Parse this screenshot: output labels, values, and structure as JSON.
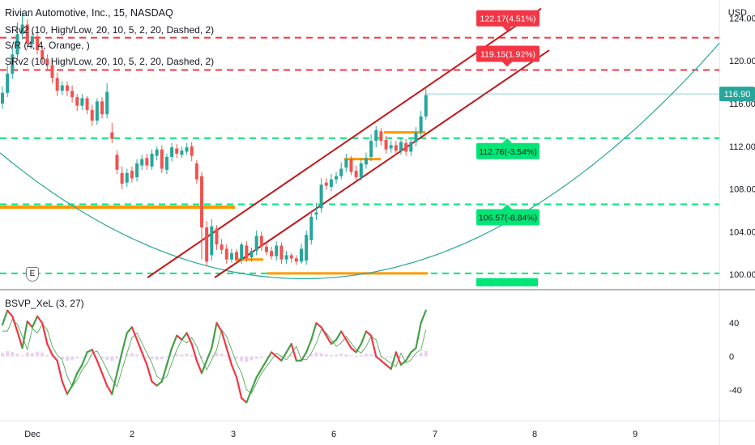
{
  "header": {
    "title": "Rivian Automotive, Inc., 15, NASDAQ",
    "indicators": [
      "SRv2 (10, High/Low, 20, 10, 5, 2, 20, Dashed, 2)",
      "S/R (4, 4, Orange, )",
      "SRv2 (10, High/Low, 20, 10, 5, 2, 20, Dashed, 2)"
    ],
    "currency": "USD",
    "earnings_marker": "E"
  },
  "lower_pane": {
    "legend": "BSVP_XeL (3, 27)"
  },
  "colors": {
    "up": "#26a69a",
    "down": "#ef5350",
    "resistance": "#f23645",
    "support": "#00e676",
    "orange": "#ff9800",
    "channel": "#c2171b",
    "curve": "#26a69a",
    "price_label": "#26a69a"
  },
  "chart_data": [
    {
      "type": "candlestick",
      "title": "Rivian Automotive, Inc., 15, NASDAQ",
      "ylim": [
        98.8,
        125.7
      ],
      "y_ticks": [
        "124.00",
        "120.00",
        "116.00",
        "112.00",
        "108.00",
        "104.00",
        "100.00"
      ],
      "x_ticks": [
        "Dec",
        "2",
        "3",
        "6",
        "7",
        "8",
        "9"
      ],
      "last_price": "116.90",
      "resistance_levels": [
        {
          "price": 122.17,
          "label": "122.17(4.51%)"
        },
        {
          "price": 119.15,
          "label": "119.15(1.92%)"
        }
      ],
      "support_levels": [
        {
          "price": 112.76,
          "label": "112.76(-3.54%)"
        },
        {
          "price": 106.57,
          "label": "106.57(-8.84%)"
        },
        {
          "price": 100.1,
          "label": ""
        }
      ],
      "candles_close": [
        117.0,
        118.8,
        120.6,
        122.5,
        123.4,
        121.6,
        122.3,
        121.0,
        120.2,
        119.6,
        118.4,
        117.2,
        117.7,
        117.2,
        116.6,
        115.8,
        116.5,
        115.4,
        114.4,
        116.2,
        115.0,
        117.1,
        112.7,
        109.8,
        108.5,
        109.5,
        109.0,
        110.4,
        110.8,
        110.2,
        111.3,
        111.7,
        109.9,
        111.0,
        111.9,
        111.3,
        111.6,
        111.9,
        111.1,
        108.9,
        104.4,
        101.2,
        104.5,
        102.8,
        102.3,
        101.4,
        102.0,
        101.4,
        102.8,
        101.5,
        102.2,
        103.6,
        102.6,
        102.1,
        101.7,
        102.7,
        101.4,
        101.8,
        101.5,
        101.2,
        102.4,
        103.7,
        105.4,
        105.8,
        108.4,
        108.3,
        108.9,
        109.2,
        109.9,
        110.8,
        109.6,
        109.1,
        110.4,
        110.9,
        112.5,
        113.5,
        112.5,
        111.7,
        112.1,
        111.6,
        112.4,
        111.5,
        112.4,
        113.3,
        114.8,
        116.8
      ],
      "candles_open": [
        116.0,
        117.0,
        118.8,
        120.6,
        122.5,
        123.4,
        121.6,
        122.3,
        121.0,
        120.2,
        119.6,
        118.4,
        117.2,
        117.7,
        117.2,
        116.6,
        115.8,
        116.5,
        115.4,
        114.4,
        116.2,
        115.0,
        113.3,
        111.2,
        109.5,
        108.6,
        109.7,
        109.1,
        110.2,
        110.9,
        110.1,
        111.1,
        111.7,
        109.8,
        111.0,
        111.8,
        111.2,
        111.5,
        112.0,
        110.4,
        109.2,
        104.4,
        101.8,
        104.3,
        102.8,
        102.4,
        101.4,
        102.1,
        101.4,
        102.7,
        101.6,
        102.2,
        103.6,
        102.6,
        102.2,
        101.7,
        102.7,
        101.4,
        101.8,
        101.5,
        101.2,
        101.3,
        103.2,
        105.6,
        106.2,
        108.6,
        108.2,
        108.9,
        109.2,
        110.0,
        110.8,
        109.7,
        109.1,
        110.3,
        111.0,
        112.5,
        113.4,
        112.6,
        111.8,
        112.1,
        111.6,
        112.3,
        111.5,
        112.4,
        113.3,
        114.8
      ],
      "candles_high": [
        117.6,
        119.6,
        121.4,
        123.6,
        124.6,
        123.9,
        122.9,
        122.7,
        121.4,
        120.6,
        120.0,
        118.9,
        118.1,
        118.1,
        117.7,
        116.9,
        116.9,
        116.7,
        115.9,
        116.5,
        116.6,
        117.9,
        114.2,
        111.6,
        110.1,
        109.9,
        110.1,
        110.8,
        111.2,
        111.3,
        111.7,
        112.0,
        112.1,
        111.3,
        112.3,
        112.2,
        112.0,
        112.3,
        112.4,
        110.7,
        109.6,
        105.0,
        105.2,
        104.6,
        103.3,
        102.8,
        102.4,
        102.4,
        103.0,
        103.1,
        102.5,
        104.1,
        104.0,
        103.0,
        102.6,
        103.1,
        103.0,
        102.2,
        102.0,
        101.8,
        102.9,
        104.1,
        106.0,
        106.7,
        109.0,
        109.0,
        109.4,
        109.6,
        110.5,
        111.3,
        111.1,
        110.2,
        110.8,
        111.4,
        113.1,
        113.9,
        113.7,
        113.0,
        112.5,
        112.5,
        112.8,
        112.7,
        112.8,
        113.8,
        115.3,
        117.4
      ],
      "candles_low": [
        115.5,
        116.6,
        118.3,
        120.2,
        122.0,
        121.1,
        121.2,
        120.6,
        119.8,
        119.2,
        117.9,
        116.7,
        116.8,
        116.7,
        116.1,
        115.3,
        115.4,
        115.0,
        113.9,
        114.0,
        114.6,
        114.6,
        112.3,
        109.4,
        108.0,
        108.2,
        108.6,
        108.7,
        109.8,
        109.8,
        109.8,
        110.7,
        109.5,
        109.4,
        110.6,
        110.9,
        110.9,
        111.2,
        110.6,
        108.5,
        101.4,
        100.8,
        101.3,
        102.3,
        101.9,
        101.0,
        101.1,
        101.1,
        101.0,
        101.2,
        101.2,
        101.8,
        102.2,
        101.8,
        101.4,
        101.3,
        101.0,
        101.0,
        101.1,
        100.9,
        101.0,
        100.9,
        102.8,
        105.1,
        105.8,
        107.9,
        107.8,
        108.5,
        108.9,
        109.6,
        109.3,
        108.8,
        108.8,
        109.9,
        110.6,
        111.9,
        112.1,
        111.3,
        111.4,
        111.2,
        111.2,
        111.1,
        111.1,
        112.0,
        112.9,
        114.5
      ]
    },
    {
      "type": "line",
      "title": "BSVP_XeL (3, 27)",
      "ylim": [
        -75,
        78
      ],
      "y_ticks": [
        "40",
        "0",
        "-40"
      ],
      "series": [
        {
          "values": [
            38,
            55,
            48,
            30,
            10,
            42,
            35,
            48,
            40,
            15,
            2,
            -5,
            -30,
            -45,
            -35,
            -20,
            -10,
            5,
            8,
            -5,
            -20,
            -35,
            -45,
            -20,
            5,
            28,
            35,
            20,
            5,
            -10,
            -30,
            -35,
            -30,
            -10,
            10,
            25,
            20,
            28,
            15,
            -5,
            -20,
            -5,
            10,
            40,
            30,
            10,
            -10,
            -25,
            -50,
            -55,
            -40,
            -25,
            -15,
            -5,
            5,
            0,
            -5,
            5,
            15,
            -5,
            -5,
            5,
            20,
            40,
            35,
            25,
            15,
            20,
            30,
            20,
            10,
            5,
            15,
            30,
            25,
            0,
            -5,
            -10,
            -15,
            5,
            -10,
            -5,
            5,
            10,
            40,
            55
          ]
        }
      ]
    }
  ]
}
